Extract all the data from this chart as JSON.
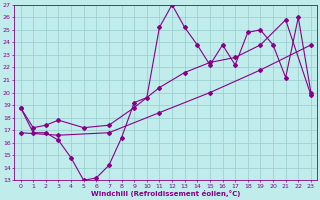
{
  "title": "",
  "xlabel": "Windchill (Refroidissement éolien,°C)",
  "ylabel": "",
  "xlim": [
    -0.5,
    23.5
  ],
  "ylim": [
    13,
    27
  ],
  "xticks": [
    0,
    1,
    2,
    3,
    4,
    5,
    6,
    7,
    8,
    9,
    10,
    11,
    12,
    13,
    14,
    15,
    16,
    17,
    18,
    19,
    20,
    21,
    22,
    23
  ],
  "yticks": [
    13,
    14,
    15,
    16,
    17,
    18,
    19,
    20,
    21,
    22,
    23,
    24,
    25,
    26,
    27
  ],
  "bg_color": "#c0ecec",
  "line_color": "#880088",
  "grid_color": "#99cccc",
  "line1_x": [
    0,
    1,
    2,
    3,
    4,
    5,
    6,
    7,
    8,
    9,
    10,
    11,
    12,
    13,
    14,
    15,
    16,
    17,
    18,
    19,
    20,
    21,
    22,
    23
  ],
  "line1_y": [
    18.8,
    16.8,
    16.8,
    16.2,
    14.8,
    13.0,
    13.2,
    14.2,
    16.4,
    19.2,
    19.6,
    25.2,
    27.0,
    25.2,
    23.8,
    22.2,
    23.8,
    22.2,
    24.8,
    25.0,
    23.8,
    21.2,
    26.0,
    20.0
  ],
  "line2_x": [
    0,
    1,
    2,
    3,
    5,
    7,
    9,
    11,
    13,
    15,
    17,
    19,
    21,
    23
  ],
  "line2_y": [
    18.8,
    17.2,
    17.4,
    17.8,
    17.2,
    17.4,
    18.8,
    20.4,
    21.6,
    22.4,
    22.8,
    23.8,
    25.8,
    19.8
  ],
  "line3_x": [
    0,
    3,
    7,
    11,
    15,
    19,
    23
  ],
  "line3_y": [
    16.8,
    16.6,
    16.8,
    18.4,
    20.0,
    21.8,
    23.8
  ],
  "marker": "D",
  "markersize": 2,
  "linewidth": 0.8,
  "tick_fontsize": 4.5,
  "xlabel_fontsize": 5.0
}
